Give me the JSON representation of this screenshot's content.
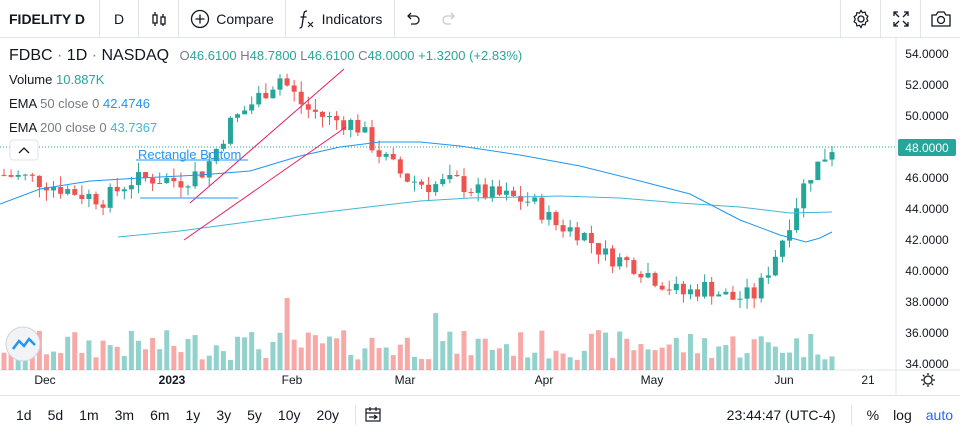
{
  "toolbar": {
    "symbol": "FIDELITY D",
    "interval": "D",
    "compare_label": "Compare",
    "indicators_label": "Indicators",
    "icons": [
      "candles-icon",
      "plus-circle-icon",
      "fx-icon",
      "undo-icon",
      "redo-icon",
      "gear-icon",
      "fullscreen-icon",
      "camera-icon"
    ]
  },
  "legend": {
    "ticker": "FDBC",
    "interval": "1D",
    "exchange": "NASDAQ",
    "open_label": "O",
    "open": "46.6100",
    "high_label": "H",
    "high": "48.7800",
    "low_label": "L",
    "low": "46.6100",
    "close_label": "C",
    "close": "48.0000",
    "change": "+1.3200 (+2.83%)",
    "volume_label": "Volume",
    "volume": "10.887K",
    "ema50_label": "EMA",
    "ema50_params": "50 close 0",
    "ema50_value": "42.4746",
    "ema200_label": "EMA",
    "ema200_params": "200 close 0",
    "ema200_value": "43.7367"
  },
  "annotation": {
    "label": "Rectangle Bottom"
  },
  "price_axis": {
    "ticks": [
      "54.0000",
      "52.0000",
      "50.0000",
      "48.0000",
      "46.0000",
      "44.0000",
      "42.0000",
      "40.0000",
      "38.0000",
      "36.0000",
      "34.0000"
    ],
    "last_price": "48.0000"
  },
  "time_axis": {
    "ticks": [
      "Dec",
      "2023",
      "Feb",
      "Mar",
      "Apr",
      "May",
      "Jun",
      "21"
    ]
  },
  "bottom_bar": {
    "ranges": [
      "1d",
      "5d",
      "1m",
      "3m",
      "6m",
      "1y",
      "3y",
      "5y",
      "10y",
      "20y"
    ],
    "clock": "23:44:47 (UTC-4)",
    "percent": "%",
    "log": "log",
    "auto": "auto"
  },
  "colors": {
    "up": "#26a69a",
    "down": "#ef5350",
    "ema50": "#2196f3",
    "ema200": "#40b8d6",
    "drawing": "#e91e63"
  },
  "chart_data": {
    "type": "candlestick",
    "x": [
      "Dec",
      "2023",
      "Feb",
      "Mar",
      "Apr",
      "May",
      "Jun"
    ],
    "ylim": [
      34,
      55
    ],
    "close_series_approx": [
      46.2,
      46.0,
      45.5,
      45.0,
      44.6,
      45.8,
      46.0,
      45.8,
      46.5,
      49.5,
      51.0,
      52.5,
      50.5,
      49.8,
      49.5,
      47.5,
      46.0,
      45.5,
      45.8,
      45.0,
      44.8,
      44.5,
      43.0,
      42.5,
      41.0,
      40.5,
      39.5,
      38.5,
      39.0,
      38.2,
      38.5,
      42.0,
      46.0,
      48.0
    ]
  }
}
